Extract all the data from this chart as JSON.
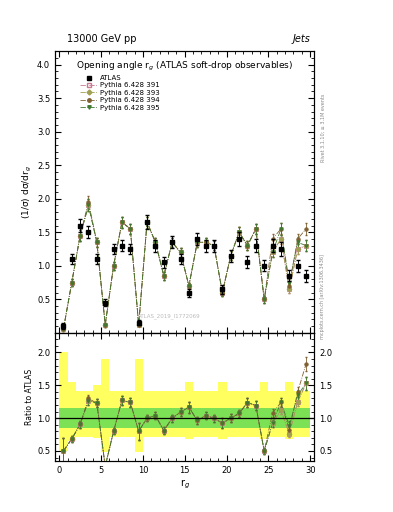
{
  "title_top": "13000 GeV pp",
  "title_right": "Jets",
  "plot_title": "Opening angle r$_g$ (ATLAS soft-drop observables)",
  "ylabel_main": "(1/σ) dσ/dr$_g$",
  "ylabel_ratio": "Ratio to ATLAS",
  "xlabel": "r$_g$",
  "right_label_top": "Rivet 3.1.10; ≥ 3.1M events",
  "right_label_bot": "mcplots.cern.ch [arXiv:1306.3436]",
  "watermark": "ATLAS_2019_I1772069",
  "ylim_main": [
    0.0,
    4.2
  ],
  "ylim_ratio": [
    0.35,
    2.3
  ],
  "yticks_main": [
    0.5,
    1.0,
    1.5,
    2.0,
    2.5,
    3.0,
    3.5,
    4.0
  ],
  "yticks_ratio": [
    0.5,
    1.0,
    1.5,
    2.0
  ],
  "xlim": [
    -0.5,
    30.5
  ],
  "xticks": [
    0,
    5,
    10,
    15,
    20,
    25,
    30
  ],
  "atlas_x": [
    0.5,
    1.5,
    2.5,
    3.5,
    4.5,
    5.5,
    6.5,
    7.5,
    8.5,
    9.5,
    10.5,
    11.5,
    12.5,
    13.5,
    14.5,
    15.5,
    16.5,
    17.5,
    18.5,
    19.5,
    20.5,
    21.5,
    22.5,
    23.5,
    24.5,
    25.5,
    26.5,
    27.5,
    28.5,
    29.5
  ],
  "atlas_y": [
    0.1,
    1.1,
    1.6,
    1.5,
    1.1,
    0.45,
    1.25,
    1.3,
    1.25,
    0.15,
    1.65,
    1.3,
    1.05,
    1.35,
    1.1,
    0.6,
    1.4,
    1.3,
    1.3,
    0.65,
    1.15,
    1.4,
    1.05,
    1.3,
    1.0,
    1.3,
    1.25,
    0.85,
    1.0,
    0.85
  ],
  "atlas_yerr": [
    0.05,
    0.08,
    0.1,
    0.09,
    0.08,
    0.05,
    0.08,
    0.08,
    0.08,
    0.04,
    0.1,
    0.09,
    0.08,
    0.09,
    0.08,
    0.06,
    0.09,
    0.09,
    0.09,
    0.07,
    0.09,
    0.1,
    0.09,
    0.1,
    0.08,
    0.1,
    0.1,
    0.08,
    0.09,
    0.09
  ],
  "py391_y": [
    0.05,
    0.75,
    1.45,
    1.9,
    1.35,
    0.12,
    1.0,
    1.65,
    1.55,
    0.12,
    1.65,
    1.35,
    0.85,
    1.35,
    1.2,
    0.7,
    1.35,
    1.35,
    1.3,
    0.6,
    1.15,
    1.5,
    1.3,
    1.55,
    0.5,
    1.2,
    1.4,
    0.65,
    1.25,
    1.3
  ],
  "py391_yerr": [
    0.02,
    0.05,
    0.08,
    0.09,
    0.07,
    0.03,
    0.06,
    0.08,
    0.08,
    0.02,
    0.08,
    0.07,
    0.06,
    0.07,
    0.07,
    0.05,
    0.07,
    0.07,
    0.07,
    0.05,
    0.07,
    0.08,
    0.07,
    0.08,
    0.05,
    0.07,
    0.08,
    0.05,
    0.07,
    0.08
  ],
  "py391_color": "#c87890",
  "py391_marker": "s",
  "py393_y": [
    0.05,
    0.75,
    1.45,
    1.9,
    1.35,
    0.12,
    1.0,
    1.65,
    1.55,
    0.12,
    1.65,
    1.35,
    0.85,
    1.35,
    1.2,
    0.7,
    1.35,
    1.35,
    1.3,
    0.6,
    1.15,
    1.5,
    1.3,
    1.55,
    0.5,
    1.2,
    1.4,
    0.65,
    1.25,
    1.3
  ],
  "py393_yerr": [
    0.02,
    0.05,
    0.08,
    0.09,
    0.07,
    0.03,
    0.06,
    0.08,
    0.08,
    0.02,
    0.08,
    0.07,
    0.06,
    0.07,
    0.07,
    0.05,
    0.07,
    0.07,
    0.07,
    0.05,
    0.07,
    0.08,
    0.07,
    0.08,
    0.05,
    0.07,
    0.08,
    0.05,
    0.07,
    0.08
  ],
  "py393_color": "#a0a050",
  "py393_marker": "D",
  "py394_y": [
    0.05,
    0.75,
    1.45,
    1.95,
    1.35,
    0.12,
    1.0,
    1.65,
    1.55,
    0.12,
    1.65,
    1.35,
    0.85,
    1.35,
    1.2,
    0.7,
    1.35,
    1.35,
    1.3,
    0.6,
    1.15,
    1.5,
    1.3,
    1.55,
    0.5,
    1.4,
    1.55,
    0.7,
    1.4,
    1.55
  ],
  "py394_yerr": [
    0.02,
    0.05,
    0.08,
    0.09,
    0.07,
    0.03,
    0.06,
    0.08,
    0.08,
    0.02,
    0.08,
    0.07,
    0.06,
    0.07,
    0.07,
    0.05,
    0.07,
    0.07,
    0.07,
    0.05,
    0.07,
    0.08,
    0.07,
    0.08,
    0.05,
    0.08,
    0.09,
    0.06,
    0.08,
    0.09
  ],
  "py394_color": "#806030",
  "py394_marker": "o",
  "py395_y": [
    0.05,
    0.75,
    1.45,
    1.9,
    1.35,
    0.12,
    1.0,
    1.65,
    1.55,
    0.12,
    1.65,
    1.35,
    0.85,
    1.35,
    1.2,
    0.7,
    1.35,
    1.35,
    1.3,
    0.6,
    1.15,
    1.5,
    1.3,
    1.55,
    0.5,
    1.2,
    1.55,
    0.75,
    1.35,
    1.3
  ],
  "py395_yerr": [
    0.02,
    0.05,
    0.08,
    0.09,
    0.07,
    0.03,
    0.06,
    0.08,
    0.08,
    0.02,
    0.08,
    0.07,
    0.06,
    0.07,
    0.07,
    0.05,
    0.07,
    0.07,
    0.07,
    0.05,
    0.07,
    0.08,
    0.07,
    0.08,
    0.05,
    0.07,
    0.09,
    0.06,
    0.08,
    0.08
  ],
  "py395_color": "#407830",
  "py395_marker": "v",
  "green_band_lo": 0.85,
  "green_band_hi": 1.15,
  "yellow_band_lo": [
    0.5,
    0.65,
    0.72,
    0.72,
    0.7,
    0.48,
    0.72,
    0.72,
    0.72,
    0.48,
    0.72,
    0.72,
    0.72,
    0.72,
    0.72,
    0.68,
    0.72,
    0.72,
    0.72,
    0.68,
    0.72,
    0.72,
    0.72,
    0.72,
    0.68,
    0.72,
    0.72,
    0.68,
    0.72,
    0.72
  ],
  "yellow_band_hi": [
    2.0,
    1.55,
    1.42,
    1.42,
    1.5,
    1.9,
    1.42,
    1.42,
    1.42,
    1.9,
    1.42,
    1.42,
    1.42,
    1.42,
    1.42,
    1.55,
    1.42,
    1.42,
    1.42,
    1.55,
    1.42,
    1.42,
    1.42,
    1.42,
    1.55,
    1.42,
    1.42,
    1.55,
    1.42,
    1.42
  ]
}
